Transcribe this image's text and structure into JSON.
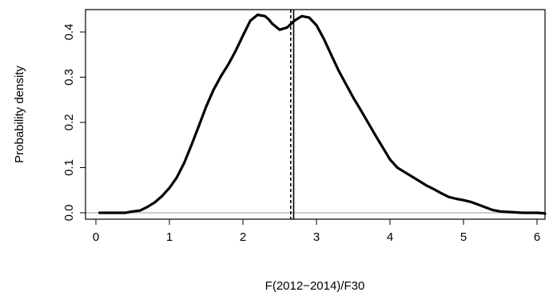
{
  "chart_data": {
    "type": "line",
    "xlabel": "F(2012−2014)/F30",
    "ylabel": "Probability density",
    "xlim": [
      -0.1,
      6.2
    ],
    "ylim": [
      -0.018,
      0.455
    ],
    "x_ticks": [
      0,
      1,
      2,
      3,
      4,
      5,
      6
    ],
    "x_tick_labels": [
      "0",
      "1",
      "2",
      "3",
      "4",
      "5",
      "6"
    ],
    "y_ticks": [
      0.0,
      0.1,
      0.2,
      0.3,
      0.4
    ],
    "y_tick_labels": [
      "0.0",
      "0.1",
      "0.2",
      "0.3",
      "0.4"
    ],
    "grid": false,
    "baseline_y": 0,
    "reference_lines": [
      {
        "x": 2.65,
        "style": "dashed"
      },
      {
        "x": 2.69,
        "style": "solid"
      }
    ],
    "series": [
      {
        "x": [
          0.05,
          0.4,
          0.5,
          0.6,
          0.7,
          0.8,
          0.9,
          1.0,
          1.1,
          1.2,
          1.3,
          1.4,
          1.5,
          1.6,
          1.7,
          1.8,
          1.9,
          2.0,
          2.1,
          2.2,
          2.3,
          2.35,
          2.4,
          2.5,
          2.6,
          2.7,
          2.8,
          2.9,
          3.0,
          3.1,
          3.2,
          3.3,
          3.4,
          3.5,
          3.6,
          3.7,
          3.8,
          3.9,
          4.0,
          4.1,
          4.2,
          4.3,
          4.4,
          4.5,
          4.6,
          4.7,
          4.8,
          4.9,
          5.0,
          5.1,
          5.2,
          5.3,
          5.4,
          5.5,
          5.6,
          5.7,
          5.8,
          5.9,
          6.0,
          6.1,
          6.2
        ],
        "y": [
          0.0,
          0.0,
          0.003,
          0.005,
          0.013,
          0.023,
          0.037,
          0.055,
          0.078,
          0.11,
          0.15,
          0.192,
          0.235,
          0.272,
          0.302,
          0.328,
          0.358,
          0.392,
          0.425,
          0.438,
          0.435,
          0.428,
          0.418,
          0.405,
          0.41,
          0.425,
          0.435,
          0.432,
          0.415,
          0.385,
          0.35,
          0.315,
          0.285,
          0.255,
          0.228,
          0.2,
          0.172,
          0.145,
          0.118,
          0.1,
          0.09,
          0.08,
          0.07,
          0.06,
          0.052,
          0.043,
          0.035,
          0.031,
          0.028,
          0.024,
          0.018,
          0.012,
          0.006,
          0.003,
          0.002,
          0.001,
          0.0,
          0.0,
          0.0,
          -0.001,
          -0.002
        ]
      }
    ]
  }
}
